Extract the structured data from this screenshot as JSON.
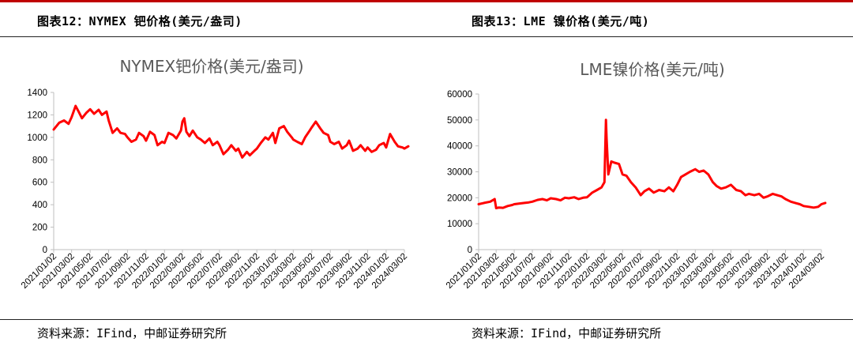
{
  "figures": [
    {
      "header": "图表12：NYMEX 钯价格(美元/盎司)",
      "source": "资料来源：IFind，中邮证券研究所"
    },
    {
      "header": "图表13：LME 镍价格(美元/吨)",
      "source": "资料来源：IFind，中邮证券研究所"
    }
  ],
  "colors": {
    "series": "#ff0000",
    "rule": "#c00000"
  },
  "chart_data": [
    {
      "type": "line",
      "title": "NYMEX钯价格(美元/盎司)",
      "xlabel": "",
      "ylabel": "",
      "ylim": [
        0,
        1400
      ],
      "yticks": [
        "0",
        "200",
        "400",
        "600",
        "800",
        "1000",
        "1200",
        "1400"
      ],
      "xticks": [
        "2021/01/02",
        "2021/03/02",
        "2021/05/02",
        "2021/07/02",
        "2021/09/02",
        "2021/11/02",
        "2022/01/02",
        "2022/03/02",
        "2022/05/02",
        "2022/07/02",
        "2022/09/02",
        "2022/11/02",
        "2023/01/02",
        "2023/03/02",
        "2023/05/02",
        "2023/07/02",
        "2023/09/02",
        "2023/11/02",
        "2024/01/02",
        "2024/03/02"
      ],
      "grid": false,
      "legend": "none",
      "series": [
        {
          "x": [
            "2021/01/02",
            "2021/01/20",
            "2021/02/05",
            "2021/02/20",
            "2021/03/02",
            "2021/03/15",
            "2021/03/25",
            "2021/04/05",
            "2021/04/20",
            "2021/05/02",
            "2021/05/15",
            "2021/05/30",
            "2021/06/10",
            "2021/06/25",
            "2021/07/02",
            "2021/07/15",
            "2021/07/30",
            "2021/08/10",
            "2021/08/25",
            "2021/09/02",
            "2021/09/15",
            "2021/09/30",
            "2021/10/10",
            "2021/10/25",
            "2021/11/02",
            "2021/11/15",
            "2021/11/30",
            "2021/12/10",
            "2021/12/25",
            "2022/01/02",
            "2022/01/15",
            "2022/01/30",
            "2022/02/10",
            "2022/02/25",
            "2022/03/02",
            "2022/03/08",
            "2022/03/15",
            "2022/03/25",
            "2022/04/05",
            "2022/04/20",
            "2022/05/02",
            "2022/05/15",
            "2022/05/30",
            "2022/06/10",
            "2022/06/25",
            "2022/07/02",
            "2022/07/15",
            "2022/07/30",
            "2022/08/10",
            "2022/08/25",
            "2022/09/02",
            "2022/09/15",
            "2022/09/30",
            "2022/10/10",
            "2022/10/25",
            "2022/11/02",
            "2022/11/15",
            "2022/11/30",
            "2022/12/10",
            "2022/12/25",
            "2023/01/02",
            "2023/01/15",
            "2023/01/30",
            "2023/02/10",
            "2023/02/25",
            "2023/03/02",
            "2023/03/15",
            "2023/03/30",
            "2023/04/10",
            "2023/04/25",
            "2023/05/02",
            "2023/05/15",
            "2023/05/30",
            "2023/06/10",
            "2023/06/25",
            "2023/07/02",
            "2023/07/15",
            "2023/07/30",
            "2023/08/10",
            "2023/08/25",
            "2023/09/02",
            "2023/09/15",
            "2023/09/30",
            "2023/10/10",
            "2023/10/25",
            "2023/11/02",
            "2023/11/15",
            "2023/11/30",
            "2023/12/10",
            "2023/12/25",
            "2024/01/02",
            "2024/01/15",
            "2024/01/30",
            "2024/02/10",
            "2024/02/25",
            "2024/03/02",
            "2024/03/15"
          ],
          "values": [
            1070,
            1130,
            1150,
            1120,
            1180,
            1280,
            1230,
            1170,
            1220,
            1250,
            1210,
            1245,
            1200,
            1230,
            1150,
            1040,
            1080,
            1040,
            1030,
            1000,
            960,
            980,
            1040,
            1010,
            970,
            1050,
            1020,
            930,
            960,
            950,
            1040,
            1020,
            990,
            1060,
            1140,
            1170,
            1050,
            1010,
            1060,
            1000,
            980,
            950,
            990,
            930,
            960,
            930,
            850,
            890,
            930,
            880,
            900,
            820,
            870,
            840,
            880,
            900,
            950,
            1000,
            980,
            1040,
            950,
            1080,
            1100,
            1050,
            1000,
            980,
            960,
            940,
            1000,
            1060,
            1090,
            1140,
            1080,
            1040,
            1020,
            960,
            940,
            960,
            900,
            930,
            970,
            880,
            900,
            930,
            880,
            910,
            870,
            890,
            930,
            950,
            910,
            1030,
            960,
            920,
            910,
            900,
            920
          ]
        }
      ]
    },
    {
      "type": "line",
      "title": "LME镍价格(美元/吨)",
      "xlabel": "",
      "ylabel": "",
      "ylim": [
        0,
        60000
      ],
      "yticks": [
        "0",
        "10000",
        "20000",
        "30000",
        "40000",
        "50000",
        "60000"
      ],
      "xticks": [
        "2021/01/02",
        "2021/03/02",
        "2021/05/02",
        "2021/07/02",
        "2021/09/02",
        "2021/11/02",
        "2022/01/02",
        "2022/03/02",
        "2022/05/02",
        "2022/07/02",
        "2022/09/02",
        "2022/11/02",
        "2023/01/02",
        "2023/03/02",
        "2023/05/02",
        "2023/07/02",
        "2023/09/02",
        "2023/11/02",
        "2024/01/02",
        "2024/03/02"
      ],
      "grid": false,
      "legend": "none",
      "series": [
        {
          "x": [
            "2021/01/02",
            "2021/01/20",
            "2021/02/10",
            "2021/02/25",
            "2021/03/02",
            "2021/03/10",
            "2021/03/25",
            "2021/04/10",
            "2021/04/25",
            "2021/05/02",
            "2021/05/20",
            "2021/06/05",
            "2021/06/20",
            "2021/07/02",
            "2021/07/20",
            "2021/08/05",
            "2021/08/20",
            "2021/09/02",
            "2021/09/20",
            "2021/10/05",
            "2021/10/20",
            "2021/11/02",
            "2021/11/20",
            "2021/12/05",
            "2021/12/20",
            "2022/01/02",
            "2022/01/20",
            "2022/02/05",
            "2022/02/20",
            "2022/03/02",
            "2022/03/07",
            "2022/03/09",
            "2022/03/15",
            "2022/03/25",
            "2022/04/05",
            "2022/04/20",
            "2022/05/02",
            "2022/05/15",
            "2022/05/30",
            "2022/06/15",
            "2022/07/02",
            "2022/07/15",
            "2022/07/30",
            "2022/08/15",
            "2022/09/02",
            "2022/09/20",
            "2022/10/05",
            "2022/10/20",
            "2022/11/02",
            "2022/11/15",
            "2022/11/30",
            "2022/12/15",
            "2023/01/02",
            "2023/01/15",
            "2023/01/30",
            "2023/02/15",
            "2023/03/02",
            "2023/03/15",
            "2023/03/30",
            "2023/04/15",
            "2023/05/02",
            "2023/05/20",
            "2023/06/05",
            "2023/06/20",
            "2023/07/02",
            "2023/07/20",
            "2023/08/05",
            "2023/08/20",
            "2023/09/02",
            "2023/09/20",
            "2023/10/05",
            "2023/10/20",
            "2023/11/02",
            "2023/11/20",
            "2023/12/05",
            "2023/12/20",
            "2024/01/02",
            "2024/01/20",
            "2024/02/05",
            "2024/02/20",
            "2024/03/02",
            "2024/03/15"
          ],
          "values": [
            17500,
            18000,
            18500,
            19500,
            16000,
            16200,
            16100,
            16800,
            17200,
            17500,
            17800,
            18000,
            18200,
            18500,
            19200,
            19500,
            19000,
            19800,
            19500,
            19000,
            20000,
            19800,
            20200,
            19500,
            20000,
            20200,
            22000,
            23000,
            24000,
            26000,
            50000,
            43000,
            29000,
            34000,
            33500,
            33000,
            29000,
            28500,
            26000,
            24000,
            21000,
            22500,
            23500,
            22000,
            23000,
            22500,
            24000,
            22500,
            25000,
            28000,
            29000,
            30000,
            31000,
            30000,
            30500,
            29000,
            26000,
            24500,
            23500,
            24000,
            25000,
            23000,
            22500,
            21000,
            21500,
            21000,
            21500,
            20000,
            20500,
            21500,
            21000,
            20500,
            19500,
            18500,
            18000,
            17500,
            16800,
            16500,
            16200,
            16500,
            17500,
            18000
          ]
        }
      ]
    }
  ]
}
